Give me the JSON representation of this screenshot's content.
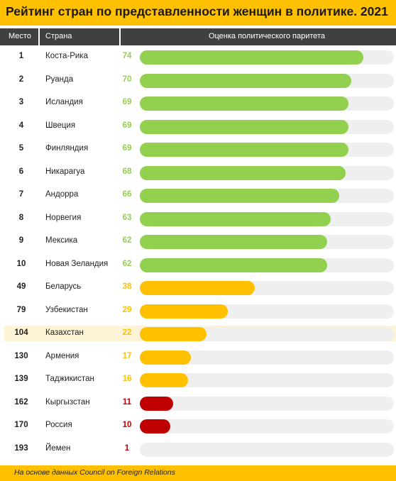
{
  "title": "Рейтинг стран по представленности женщин в политике. 2021",
  "columns": {
    "rank": "Место",
    "country": "Страна",
    "score": "Оценка политического паритета"
  },
  "source": "На основе данных Council on Foreign Relations",
  "colors": {
    "high": "#92D050",
    "mid": "#FFC000",
    "low": "#C00000",
    "track": "#EFEFEF",
    "header_bg": "#404040",
    "accent": "#FFC000",
    "highlight_row": "#FDF3D6"
  },
  "chart_data": {
    "type": "bar",
    "orientation": "horizontal",
    "xlim": [
      0,
      84
    ],
    "categories": [
      "Коста-Рика",
      "Руанда",
      "Исландия",
      "Швеция",
      "Финляндия",
      "Никарагуа",
      "Андорра",
      "Норвегия",
      "Мексика",
      "Новая Зеландия",
      "Беларусь",
      "Узбекистан",
      "Казахстан",
      "Армения",
      "Таджикистан",
      "Кыргызстан",
      "Россия",
      "Йемен"
    ],
    "rows": [
      {
        "rank": "1",
        "country": "Коста-Рика",
        "value": 74,
        "tier": "high"
      },
      {
        "rank": "2",
        "country": "Руанда",
        "value": 70,
        "tier": "high"
      },
      {
        "rank": "3",
        "country": "Исландия",
        "value": 69,
        "tier": "high"
      },
      {
        "rank": "4",
        "country": "Швеция",
        "value": 69,
        "tier": "high"
      },
      {
        "rank": "5",
        "country": "Финляндия",
        "value": 69,
        "tier": "high"
      },
      {
        "rank": "6",
        "country": "Никарагуа",
        "value": 68,
        "tier": "high"
      },
      {
        "rank": "7",
        "country": "Андорра",
        "value": 66,
        "tier": "high"
      },
      {
        "rank": "8",
        "country": "Норвегия",
        "value": 63,
        "tier": "high"
      },
      {
        "rank": "9",
        "country": "Мексика",
        "value": 62,
        "tier": "high"
      },
      {
        "rank": "10",
        "country": "Новая Зеландия",
        "value": 62,
        "tier": "high"
      },
      {
        "rank": "49",
        "country": "Беларусь",
        "value": 38,
        "tier": "mid"
      },
      {
        "rank": "79",
        "country": "Узбекистан",
        "value": 29,
        "tier": "mid"
      },
      {
        "rank": "104",
        "country": "Казахстан",
        "value": 22,
        "tier": "mid",
        "highlight": true
      },
      {
        "rank": "130",
        "country": "Армения",
        "value": 17,
        "tier": "mid"
      },
      {
        "rank": "139",
        "country": "Таджикистан",
        "value": 16,
        "tier": "mid"
      },
      {
        "rank": "162",
        "country": "Кыргызстан",
        "value": 11,
        "tier": "low"
      },
      {
        "rank": "170",
        "country": "Россия",
        "value": 10,
        "tier": "low"
      },
      {
        "rank": "193",
        "country": "Йемен",
        "value": 1,
        "tier": "low"
      }
    ]
  }
}
